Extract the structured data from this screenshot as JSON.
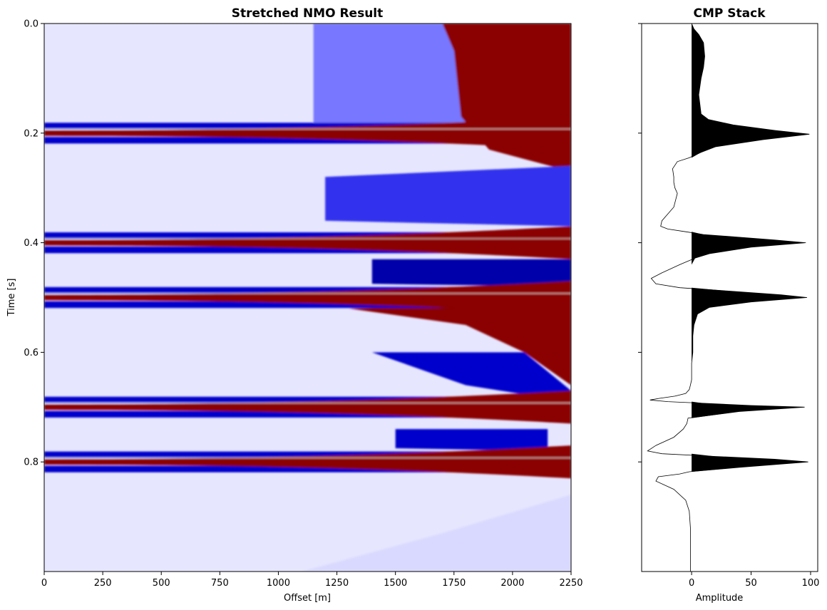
{
  "chart_data": [
    {
      "type": "heatmap",
      "title": "Stretched NMO Result",
      "xlabel": "Offset [m]",
      "ylabel": "Time [s]",
      "xlim": [
        0,
        2250
      ],
      "ylim": [
        1.0,
        0.0
      ],
      "x_ticks": [
        "0",
        "250",
        "500",
        "750",
        "1000",
        "1250",
        "1500",
        "1750",
        "2000",
        "2250"
      ],
      "y_ticks": [
        "0.0",
        "0.2",
        "0.4",
        "0.6",
        "0.8"
      ],
      "colormap": "seismic",
      "colors": {
        "negative": "#0000cc",
        "zero": "#ffffff",
        "positive": "#8b0000"
      },
      "reflectors_time_s": [
        0.2,
        0.4,
        0.5,
        0.7,
        0.8
      ],
      "grid": false
    },
    {
      "type": "line",
      "title": "CMP Stack",
      "xlabel": "Amplitude",
      "ylabel": "",
      "xlim": [
        -42,
        106
      ],
      "ylim": [
        1.0,
        0.0
      ],
      "x_ticks": [
        "0",
        "50",
        "100"
      ],
      "fill_positive": "#000000",
      "line_color": "#000000",
      "series": [
        {
          "x": [
            0,
            2,
            6,
            10,
            11,
            10,
            8,
            6,
            8,
            14,
            35,
            70,
            99,
            60,
            20,
            8,
            -2,
            -12,
            -16,
            -15,
            -15,
            -14,
            -12,
            -15,
            -25,
            -26,
            -20,
            -5,
            10,
            40,
            70,
            96,
            50,
            15,
            3,
            -10,
            -25,
            -34,
            -30,
            -10,
            30,
            75,
            97,
            50,
            15,
            5,
            2,
            1,
            1,
            1,
            0,
            0,
            0,
            -1,
            -2,
            -5,
            -14,
            -27,
            -35,
            -20,
            10,
            50,
            95,
            40,
            -3,
            -4,
            -7,
            -15,
            -30,
            -37,
            -25,
            20,
            70,
            98,
            40,
            -2,
            -10,
            -28,
            -30,
            -15,
            -5,
            -2,
            -1,
            -1,
            -1,
            -1
          ],
          "y": [
            0.0,
            0.01,
            0.02,
            0.035,
            0.06,
            0.08,
            0.1,
            0.13,
            0.165,
            0.175,
            0.185,
            0.195,
            0.202,
            0.212,
            0.225,
            0.235,
            0.245,
            0.252,
            0.265,
            0.28,
            0.29,
            0.3,
            0.31,
            0.335,
            0.36,
            0.37,
            0.375,
            0.38,
            0.385,
            0.39,
            0.395,
            0.4,
            0.408,
            0.42,
            0.428,
            0.44,
            0.455,
            0.465,
            0.475,
            0.482,
            0.488,
            0.495,
            0.5,
            0.508,
            0.518,
            0.53,
            0.55,
            0.57,
            0.58,
            0.6,
            0.62,
            0.64,
            0.65,
            0.66,
            0.668,
            0.675,
            0.68,
            0.684,
            0.687,
            0.69,
            0.693,
            0.697,
            0.7,
            0.708,
            0.72,
            0.73,
            0.74,
            0.755,
            0.77,
            0.78,
            0.785,
            0.79,
            0.795,
            0.8,
            0.81,
            0.818,
            0.822,
            0.827,
            0.835,
            0.85,
            0.87,
            0.89,
            0.92,
            0.95,
            0.98,
            1.0
          ]
        }
      ]
    }
  ]
}
